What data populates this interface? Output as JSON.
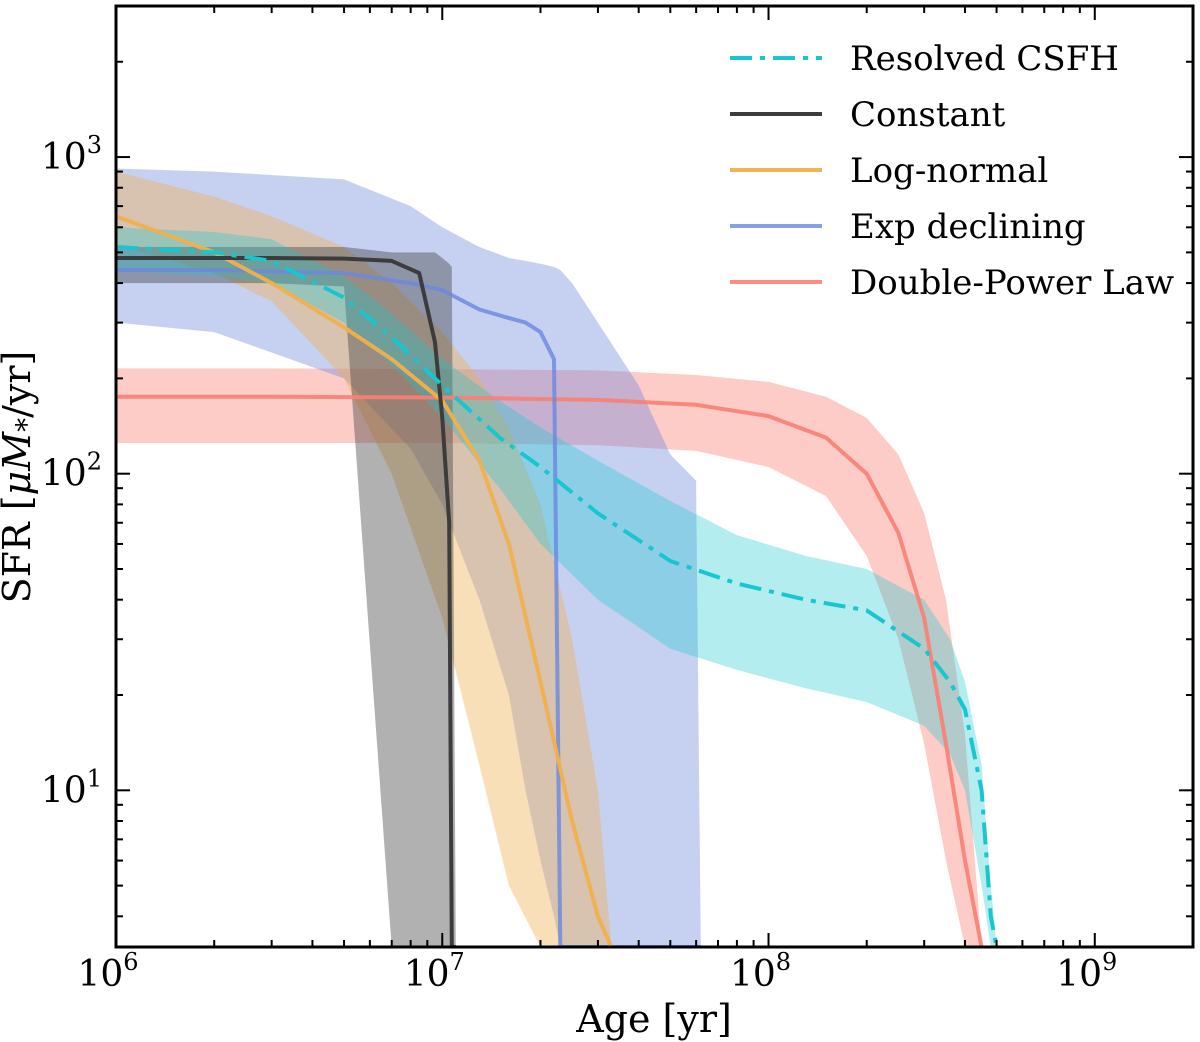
{
  "chart_data": {
    "type": "line",
    "title": "",
    "xlabel": "Age [yr]",
    "ylabel_parts": [
      "SFR [",
      "μM",
      "*",
      "/yr]"
    ],
    "xscale": "log",
    "yscale": "log",
    "xlim": [
      1000000,
      2000000000
    ],
    "ylim": [
      3.2,
      3000
    ],
    "legend_position": "top-right",
    "x_major_ticks": [
      {
        "value": 1000000,
        "base": "10",
        "exp": "6"
      },
      {
        "value": 10000000,
        "base": "10",
        "exp": "7"
      },
      {
        "value": 100000000,
        "base": "10",
        "exp": "8"
      },
      {
        "value": 1000000000,
        "base": "10",
        "exp": "9"
      }
    ],
    "y_major_ticks": [
      {
        "value": 10,
        "base": "10",
        "exp": "1"
      },
      {
        "value": 100,
        "base": "10",
        "exp": "2"
      },
      {
        "value": 1000,
        "base": "10",
        "exp": "3"
      }
    ],
    "series": [
      {
        "name": "Double-Power Law",
        "color": "#fa8072",
        "dash": "solid",
        "band_opacity": 0.4,
        "line_opacity": 0.9,
        "x": [
          1000000,
          3000000,
          10000000,
          30000000,
          60000000,
          100000000,
          150000000,
          200000000,
          250000000,
          300000000,
          350000000,
          400000000,
          450000000
        ],
        "y": [
          175,
          175,
          174,
          171,
          165,
          152,
          130,
          100,
          65,
          35,
          14,
          6,
          3.2
        ],
        "lo": [
          125,
          125,
          125,
          123,
          118,
          105,
          85,
          55,
          30,
          14,
          6,
          3.2,
          3.2
        ],
        "hi": [
          215,
          215,
          214,
          212,
          205,
          195,
          175,
          150,
          115,
          75,
          40,
          15,
          3.2
        ]
      },
      {
        "name": "Exp declining",
        "color": "#6a87de",
        "dash": "solid",
        "band_opacity": 0.38,
        "line_opacity": 0.8,
        "x": [
          1000000,
          2000000,
          5000000,
          8000000,
          10000000,
          13000000,
          16000000,
          18000000,
          20000000,
          22000000,
          23000000,
          25000000,
          30000000,
          40000000,
          50000000,
          60000000,
          62000000
        ],
        "y": [
          440,
          440,
          430,
          400,
          380,
          330,
          310,
          300,
          280,
          230,
          3.2,
          3.2,
          3.2,
          3.2,
          3.2,
          3.2,
          3.2
        ],
        "lo": [
          300,
          280,
          200,
          120,
          80,
          40,
          20,
          10,
          6,
          4,
          3.2,
          3.2,
          3.2,
          3.2,
          3.2,
          3.2,
          3.2
        ],
        "hi": [
          920,
          900,
          850,
          700,
          600,
          520,
          480,
          470,
          460,
          450,
          440,
          400,
          300,
          190,
          115,
          95,
          3.2
        ]
      },
      {
        "name": "Log-normal",
        "color": "#f0b04c",
        "dash": "solid",
        "band_opacity": 0.4,
        "line_opacity": 0.95,
        "x": [
          1000000,
          2000000,
          3000000,
          5000000,
          7000000,
          10000000,
          13000000,
          16000000,
          20000000,
          25000000,
          30000000,
          33000000
        ],
        "y": [
          650,
          500,
          400,
          290,
          230,
          170,
          110,
          60,
          22,
          8,
          4,
          3.2
        ],
        "lo": [
          530,
          430,
          350,
          200,
          100,
          35,
          12,
          5,
          3.2,
          3.2,
          3.2,
          3.2
        ],
        "hi": [
          900,
          750,
          650,
          520,
          400,
          280,
          200,
          140,
          80,
          30,
          10,
          3.2
        ]
      },
      {
        "name": "Constant",
        "color": "#3c3c3c",
        "dash": "solid",
        "band_opacity": 0.4,
        "line_opacity": 1.0,
        "x": [
          1000000,
          3000000,
          5000000,
          7000000,
          8500000,
          9500000,
          10000000,
          10500000,
          10700000,
          11000000
        ],
        "y": [
          480,
          480,
          478,
          470,
          430,
          260,
          150,
          70,
          3.2,
          3.2
        ],
        "lo": [
          400,
          400,
          390,
          3.2,
          3.2,
          3.2,
          3.2,
          3.2,
          3.2,
          3.2
        ],
        "hi": [
          520,
          520,
          520,
          500,
          500,
          500,
          480,
          460,
          450,
          3.2
        ]
      },
      {
        "name": "Resolved CSFH",
        "color": "#17c6cf",
        "dash": "dashdot",
        "band_opacity": 0.32,
        "line_opacity": 1.0,
        "x": [
          1000000,
          2000000,
          3000000,
          5000000,
          7000000,
          10000000,
          15000000,
          20000000,
          30000000,
          50000000,
          80000000,
          130000000,
          200000000,
          300000000,
          360000000,
          400000000,
          450000000,
          480000000,
          500000000
        ],
        "y": [
          520,
          500,
          470,
          360,
          270,
          190,
          130,
          105,
          75,
          53,
          45,
          40,
          37,
          28,
          22,
          18,
          10,
          4,
          3.2
        ],
        "lo": [
          440,
          420,
          400,
          300,
          220,
          150,
          90,
          60,
          40,
          28,
          24,
          21,
          19,
          16,
          13,
          10,
          5,
          3.2,
          3.2
        ],
        "hi": [
          600,
          580,
          550,
          420,
          320,
          230,
          170,
          140,
          110,
          82,
          64,
          55,
          50,
          40,
          30,
          22,
          12,
          5,
          3.2
        ]
      }
    ],
    "legend_order": [
      "Resolved CSFH",
      "Constant",
      "Log-normal",
      "Exp declining",
      "Double-Power Law"
    ]
  }
}
